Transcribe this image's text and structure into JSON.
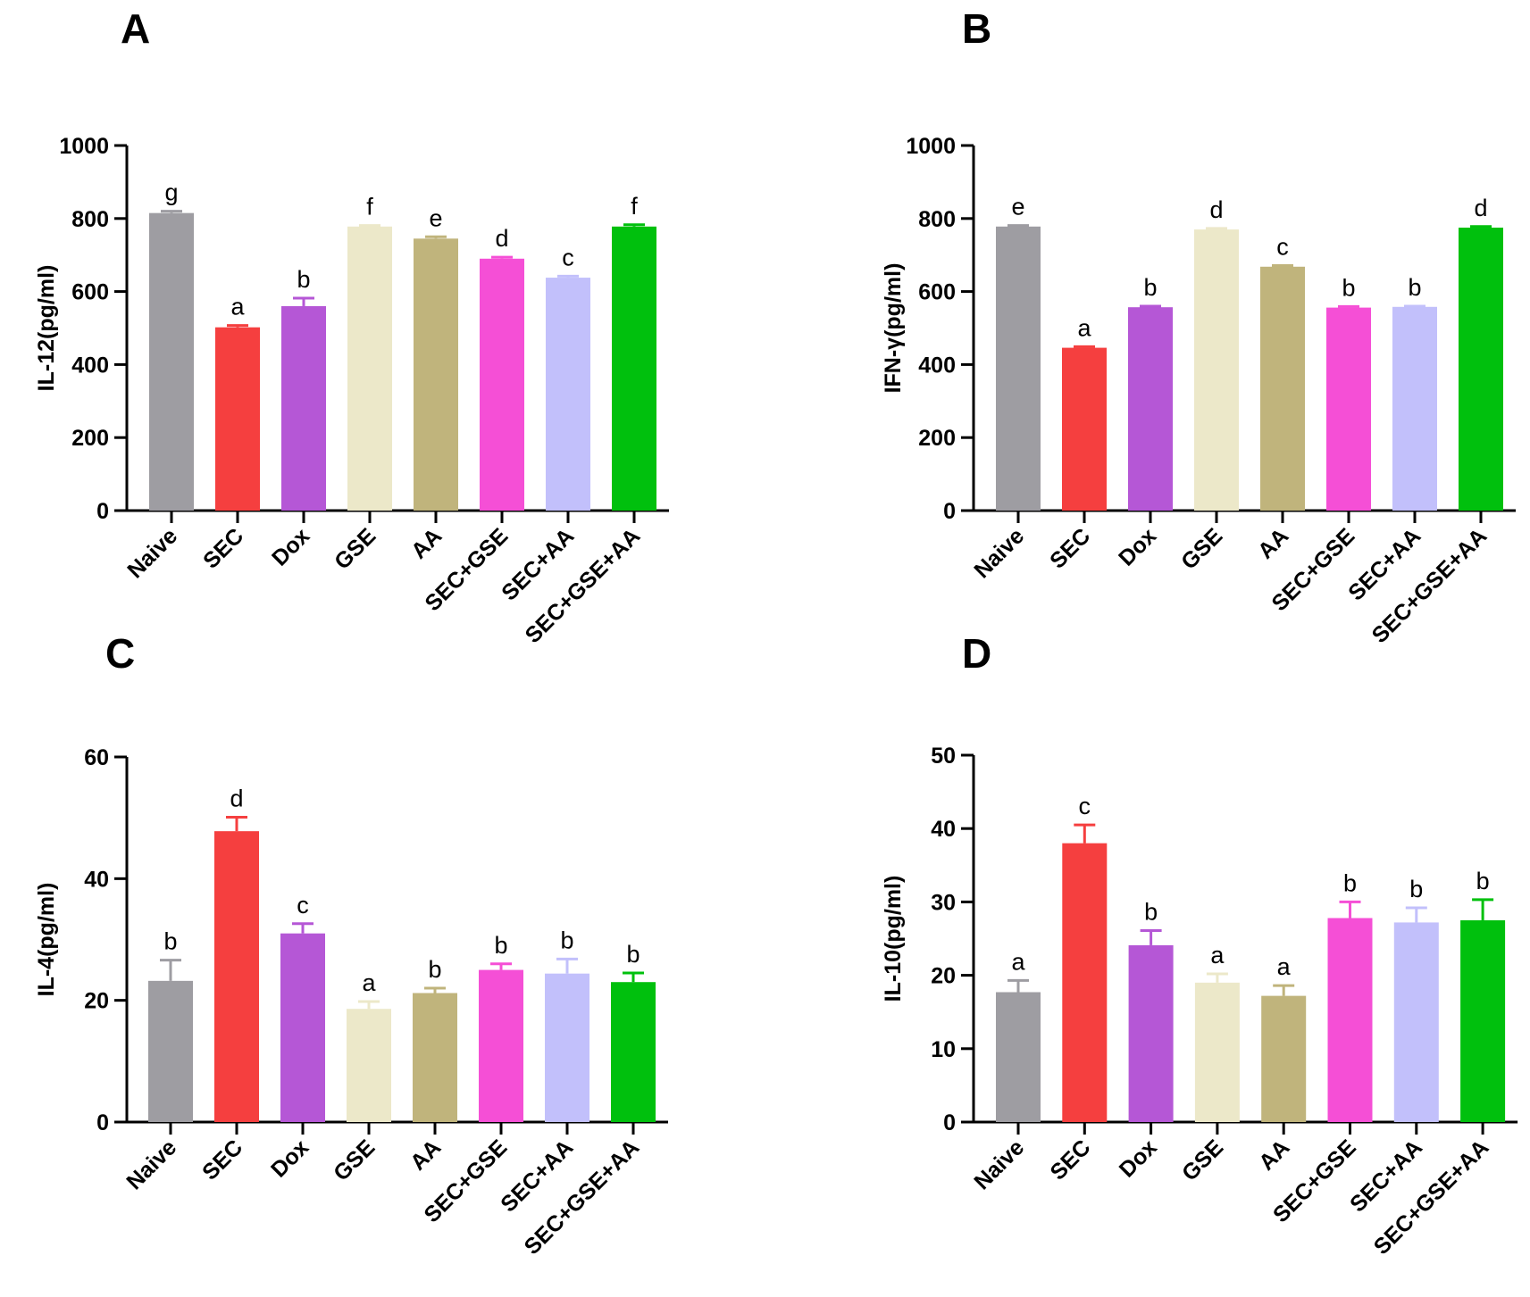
{
  "categories": [
    "Naive",
    "SEC",
    "Dox",
    "GSE",
    "AA",
    "SEC+GSE",
    "SEC+AA",
    "SEC+GSE+AA"
  ],
  "colors": [
    "#9e9da2",
    "#f53f3f",
    "#b557d6",
    "#ece8c9",
    "#c0b47c",
    "#f54fd6",
    "#c2c0fb",
    "#00c00d"
  ],
  "chart_data": [
    {
      "panel": "A",
      "type": "bar",
      "ylabel": "IL-12(pg/ml)",
      "ylim": [
        0,
        1000
      ],
      "yticks": [
        0,
        200,
        400,
        600,
        800,
        1000
      ],
      "values": [
        815,
        502,
        560,
        778,
        745,
        690,
        638,
        778
      ],
      "errors": [
        5,
        5,
        22,
        3,
        5,
        4,
        4,
        5
      ],
      "letters": [
        "g",
        "a",
        "b",
        "f",
        "e",
        "d",
        "c",
        "f"
      ]
    },
    {
      "panel": "B",
      "type": "bar",
      "ylabel": "IFN-γ(pg/ml)",
      "ylim": [
        0,
        1000
      ],
      "yticks": [
        0,
        200,
        400,
        600,
        800,
        1000
      ],
      "values": [
        778,
        446,
        557,
        770,
        668,
        556,
        558,
        775
      ],
      "errors": [
        3,
        3,
        3,
        3,
        3,
        3,
        2,
        3
      ],
      "letters": [
        "e",
        "a",
        "b",
        "d",
        "c",
        "b",
        "b",
        "d"
      ]
    },
    {
      "panel": "C",
      "type": "bar",
      "ylabel": "IL-4(pg/ml)",
      "ylim": [
        0,
        60
      ],
      "yticks": [
        0,
        20,
        40,
        60
      ],
      "values": [
        23.2,
        47.8,
        31.0,
        18.6,
        21.2,
        25.0,
        24.4,
        23.0
      ],
      "errors": [
        3.4,
        2.3,
        1.6,
        1.2,
        0.8,
        1.0,
        2.4,
        1.5
      ],
      "letters": [
        "b",
        "d",
        "c",
        "a",
        "b",
        "b",
        "b",
        "b"
      ]
    },
    {
      "panel": "D",
      "type": "bar",
      "ylabel": "IL-10(pg/ml)",
      "ylim": [
        0,
        50
      ],
      "yticks": [
        0,
        10,
        20,
        30,
        40,
        50
      ],
      "values": [
        17.7,
        38.0,
        24.1,
        19.0,
        17.2,
        27.8,
        27.2,
        27.5
      ],
      "errors": [
        1.6,
        2.5,
        2.0,
        1.2,
        1.4,
        2.2,
        2.0,
        2.8
      ],
      "letters": [
        "a",
        "c",
        "b",
        "a",
        "a",
        "b",
        "b",
        "b"
      ]
    }
  ]
}
